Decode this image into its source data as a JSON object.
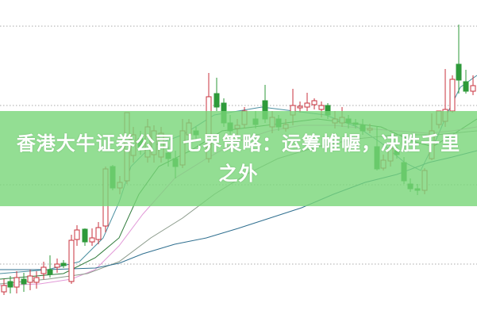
{
  "article": {
    "title": "香港大牛证券公司 七界策略：运筹帷幄，决胜千里之外"
  },
  "chart": {
    "type": "candlestick",
    "grid": "dotted horizontal",
    "colors": {
      "up": "#c8323c",
      "down": "#2e9a3a",
      "banner": "#8fdc8f",
      "ma_lines": [
        "#4a8fa0",
        "#2f7a3a",
        "#e29ad8",
        "#8a9a8a",
        "#2f6f8f"
      ]
    }
  }
}
